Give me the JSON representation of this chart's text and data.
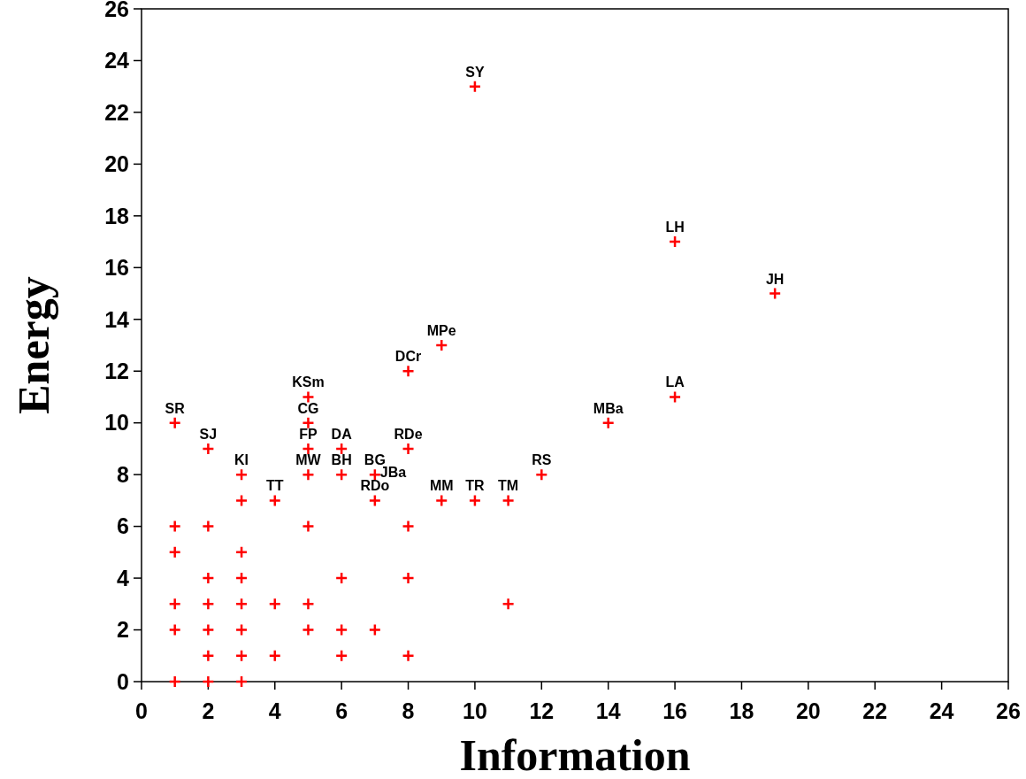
{
  "chart_data": {
    "type": "scatter",
    "xlabel": "Information",
    "ylabel": "Energy",
    "marker": "cross",
    "xlim": [
      0,
      26
    ],
    "xticks": [
      0,
      2,
      4,
      6,
      8,
      10,
      12,
      14,
      16,
      18,
      20,
      22,
      24,
      26
    ],
    "ylim": [
      0,
      26
    ],
    "yticks": [
      0,
      2,
      4,
      6,
      8,
      10,
      12,
      14,
      16,
      18,
      20,
      22,
      24,
      26
    ],
    "series": [
      {
        "color": "#ff0000",
        "x": [
          1,
          1,
          1,
          1,
          1,
          2,
          2,
          2,
          2,
          2,
          2,
          3,
          3,
          3,
          3,
          3,
          3,
          3,
          4,
          4,
          5,
          5,
          5,
          6,
          6,
          6,
          7,
          8,
          8,
          8,
          11,
          1,
          2,
          3,
          4,
          5,
          5,
          5,
          5,
          6,
          6,
          7,
          7,
          8,
          8,
          9,
          9,
          10,
          10,
          11,
          12,
          14,
          16,
          16,
          19
        ],
        "values": [
          6,
          5,
          3,
          2,
          0,
          6,
          4,
          3,
          2,
          1,
          0,
          7,
          5,
          4,
          3,
          2,
          1,
          0,
          3,
          1,
          6,
          3,
          2,
          4,
          2,
          1,
          2,
          6,
          4,
          1,
          3,
          10,
          9,
          8,
          7,
          11,
          10,
          9,
          8,
          9,
          8,
          8,
          7,
          9,
          12,
          13,
          7,
          23,
          7,
          7,
          8,
          10,
          11,
          17,
          15
        ]
      }
    ],
    "annotations": [
      {
        "text": "SR",
        "x": 1,
        "y": 10
      },
      {
        "text": "SJ",
        "x": 2,
        "y": 9
      },
      {
        "text": "KI",
        "x": 3,
        "y": 8
      },
      {
        "text": "TT",
        "x": 4,
        "y": 7
      },
      {
        "text": "KSm",
        "x": 5,
        "y": 11
      },
      {
        "text": "CG",
        "x": 5,
        "y": 10
      },
      {
        "text": "FP",
        "x": 5,
        "y": 9
      },
      {
        "text": "MW",
        "x": 5,
        "y": 8
      },
      {
        "text": "DA",
        "x": 6,
        "y": 9
      },
      {
        "text": "BH",
        "x": 6,
        "y": 8
      },
      {
        "text": "BG",
        "x": 7,
        "y": 8
      },
      {
        "text": "JBa",
        "x": 7,
        "y": 8
      },
      {
        "text": "RDo",
        "x": 7,
        "y": 7
      },
      {
        "text": "RDe",
        "x": 8,
        "y": 9
      },
      {
        "text": "DCr",
        "x": 8,
        "y": 12
      },
      {
        "text": "MPe",
        "x": 9,
        "y": 13
      },
      {
        "text": "SY",
        "x": 10,
        "y": 23
      },
      {
        "text": "MM",
        "x": 9,
        "y": 7
      },
      {
        "text": "TR",
        "x": 10,
        "y": 7
      },
      {
        "text": "TM",
        "x": 11,
        "y": 7
      },
      {
        "text": "RS",
        "x": 12,
        "y": 8
      },
      {
        "text": "MBa",
        "x": 14,
        "y": 10
      },
      {
        "text": "LA",
        "x": 16,
        "y": 11
      },
      {
        "text": "LH",
        "x": 16,
        "y": 17
      },
      {
        "text": "JH",
        "x": 19,
        "y": 15
      }
    ]
  }
}
